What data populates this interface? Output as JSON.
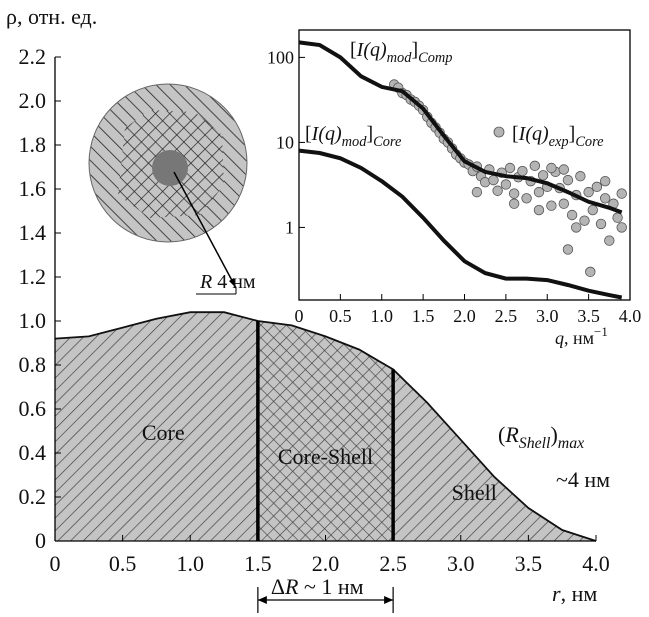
{
  "chart_data": [
    {
      "type": "area",
      "ylabel": "ρ, отн. ед.",
      "xlabel": [
        "r",
        ", нм"
      ],
      "x": [
        0,
        0.25,
        0.5,
        0.75,
        1.0,
        1.25,
        1.5,
        1.75,
        2.0,
        2.25,
        2.5,
        2.75,
        3.0,
        3.25,
        3.5,
        3.75,
        4.0
      ],
      "values": [
        0.92,
        0.93,
        0.97,
        1.01,
        1.04,
        1.04,
        1.0,
        0.98,
        0.93,
        0.87,
        0.78,
        0.63,
        0.46,
        0.29,
        0.15,
        0.05,
        0.0
      ],
      "xlim": [
        0,
        4
      ],
      "ylim": [
        0,
        2.2
      ],
      "xticks": [
        0,
        0.5,
        {
          "value": 1,
          "label": "1.0"
        },
        1.5,
        {
          "value": 2,
          "label": "2.0"
        },
        2.5,
        {
          "value": 3,
          "label": "3.0"
        },
        3.5,
        {
          "value": 4,
          "label": "4.0"
        }
      ],
      "yticks": [
        0,
        0.2,
        0.4,
        0.6,
        0.8,
        {
          "value": 1,
          "label": "1.0"
        },
        1.2,
        1.4,
        1.6,
        1.8,
        {
          "value": 2,
          "label": "2.0"
        },
        2.2
      ],
      "boundaries": [
        1.5,
        2.5
      ],
      "region_labels": [
        "Core",
        "Core-Shell",
        "Shell"
      ],
      "r_shell": [
        "(",
        "R",
        "Shell",
        ")",
        "max"
      ],
      "r_shell_value": "~4 нм",
      "delta_r": [
        "Δ",
        "R",
        " ~ 1 нм"
      ]
    },
    {
      "type": "log-line",
      "x": [
        0,
        0.25,
        0.5,
        0.75,
        1.0,
        1.25,
        1.5,
        1.75,
        2.0,
        2.25,
        2.5,
        2.75,
        3.0,
        3.25,
        3.5,
        3.75,
        3.9
      ],
      "xlim": [
        0,
        4
      ],
      "ylim": [
        0.14,
        210
      ],
      "log_y": true,
      "xticks": [
        0,
        0.5,
        {
          "value": 1,
          "label": "1.0"
        },
        1.5,
        {
          "value": 2,
          "label": "2.0"
        },
        2.5,
        {
          "value": 3,
          "label": "3.0"
        },
        3.5,
        {
          "value": 4,
          "label": "4.0"
        }
      ],
      "yticks": [
        1,
        10,
        100
      ],
      "xlabel": [
        "q",
        ", нм",
        "−1"
      ],
      "series": [
        {
          "label": [
            "[",
            "I(q)",
            "mod",
            "]",
            "Comp"
          ],
          "color": "#111111",
          "values": [
            150,
            140,
            100,
            60,
            45,
            40,
            25,
            12,
            6,
            4.5,
            4,
            3.8,
            3.3,
            2.6,
            2,
            1.7,
            1.5
          ]
        },
        {
          "label": [
            "[",
            "I(q)",
            "mod",
            "]",
            "Core"
          ],
          "color": "#111111",
          "values": [
            8,
            7.5,
            6.5,
            5,
            3.5,
            2.3,
            1.3,
            0.7,
            0.4,
            0.29,
            0.25,
            0.25,
            0.24,
            0.21,
            0.18,
            0.16,
            0.15
          ]
        }
      ],
      "points": {
        "label": [
          "[",
          "I(q)",
          "exp",
          "]",
          "Core"
        ],
        "color": "#b4b4b4",
        "x": [
          1.15,
          1.2,
          1.25,
          1.3,
          1.35,
          1.4,
          1.45,
          1.5,
          1.55,
          1.6,
          1.65,
          1.7,
          1.75,
          1.8,
          1.85,
          1.9,
          1.95,
          2.0,
          2.05,
          2.1,
          2.15,
          2.2,
          2.25,
          2.3,
          2.35,
          2.4,
          2.45,
          2.5,
          2.55,
          2.6,
          2.65,
          2.7,
          2.75,
          2.8,
          2.85,
          2.9,
          2.95,
          3.0,
          3.05,
          3.1,
          3.15,
          3.2,
          3.25,
          3.3,
          3.35,
          3.4,
          3.45,
          3.5,
          3.55,
          3.6,
          3.65,
          3.7,
          3.75,
          3.8,
          3.85,
          3.9,
          3.52,
          3.25,
          2.15,
          2.6,
          3.05,
          3.2,
          3.7,
          3.9,
          3.35,
          2.9
        ],
        "values": [
          48,
          44,
          38,
          36,
          32,
          30,
          27,
          24,
          20,
          17,
          15,
          13,
          11,
          10,
          8.5,
          7.2,
          6.5,
          5.8,
          5.5,
          4.6,
          5.2,
          4.0,
          3.4,
          4.8,
          3.6,
          2.7,
          4.4,
          3.2,
          5.0,
          2.5,
          3.9,
          4.6,
          2.2,
          3.5,
          5.3,
          2.6,
          4.1,
          3.0,
          1.8,
          4.5,
          2.9,
          1.9,
          3.6,
          1.4,
          2.4,
          4.0,
          1.2,
          2.6,
          1.6,
          3.0,
          1.1,
          2.2,
          0.7,
          1.9,
          1.3,
          2.5,
          0.3,
          0.55,
          2.6,
          1.9,
          5.0,
          4.8,
          3.5,
          1.0,
          1.0,
          1.6
        ]
      }
    }
  ],
  "diagram": {
    "radius_label": [
      "R",
      " 4 нм"
    ]
  }
}
